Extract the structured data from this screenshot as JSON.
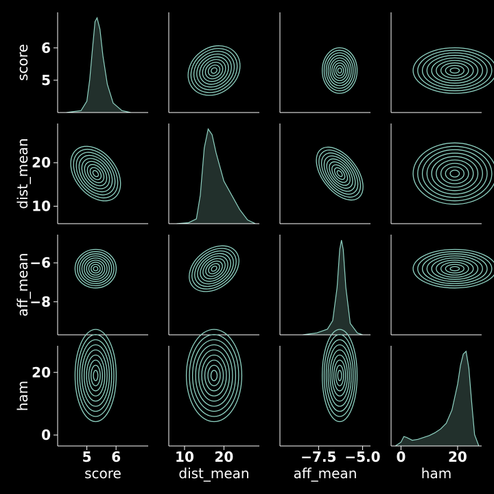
{
  "chart_data": {
    "type": "pairplot",
    "variables": [
      "score",
      "dist_mean",
      "aff_mean",
      "ham"
    ],
    "ranges": {
      "score": [
        4.0,
        7.1
      ],
      "dist_mean": [
        6,
        29
      ],
      "aff_mean": [
        -9.7,
        -4.55
      ],
      "ham": [
        -3.5,
        28.5
      ]
    },
    "ticks": {
      "score": {
        "values": [
          5,
          6
        ],
        "labels": [
          "5",
          "6"
        ]
      },
      "dist_mean": {
        "values": [
          10,
          20
        ],
        "labels": [
          "10",
          "20"
        ]
      },
      "aff_mean": {
        "values": [
          -6,
          -8
        ],
        "labels": [
          "−6",
          "−8"
        ],
        "x_values": [
          -7.5,
          -5.0
        ],
        "x_labels": [
          "−7.5",
          "−5.0"
        ]
      },
      "ham": {
        "values": [
          0,
          20
        ],
        "labels": [
          "0",
          "20"
        ]
      }
    },
    "marginals": {
      "score": {
        "x": [
          4.3,
          4.8,
          5.0,
          5.1,
          5.2,
          5.28,
          5.35,
          5.45,
          5.55,
          5.7,
          5.9,
          6.2,
          6.5
        ],
        "density": [
          0.0,
          0.02,
          0.12,
          0.35,
          0.7,
          0.96,
          1.0,
          0.88,
          0.6,
          0.3,
          0.1,
          0.02,
          0.0
        ]
      },
      "dist_mean": {
        "x": [
          8,
          11,
          13,
          14,
          15,
          16,
          17,
          18,
          19,
          20,
          22,
          24,
          26,
          28
        ],
        "density": [
          0.0,
          0.01,
          0.05,
          0.3,
          0.8,
          1.0,
          0.94,
          0.75,
          0.6,
          0.45,
          0.3,
          0.15,
          0.04,
          0.0
        ]
      },
      "aff_mean": {
        "x": [
          -8.4,
          -7.6,
          -7.0,
          -6.7,
          -6.45,
          -6.3,
          -6.2,
          -6.1,
          -5.95,
          -5.7,
          -5.3,
          -5.0
        ],
        "density": [
          0.0,
          0.02,
          0.06,
          0.15,
          0.5,
          0.9,
          1.0,
          0.9,
          0.5,
          0.12,
          0.02,
          0.0
        ]
      },
      "ham": {
        "x": [
          -2,
          0,
          1,
          2,
          4,
          6,
          8,
          10,
          12,
          14,
          16,
          18,
          20,
          21,
          22,
          23,
          24,
          25,
          26,
          27.5
        ],
        "density": [
          0.0,
          0.04,
          0.1,
          0.09,
          0.06,
          0.07,
          0.09,
          0.11,
          0.14,
          0.18,
          0.24,
          0.38,
          0.65,
          0.85,
          0.97,
          1.0,
          0.82,
          0.45,
          0.12,
          0.0
        ]
      }
    },
    "contour_levels": 9,
    "color": "#8fd3c3",
    "fill_color": "#22302c",
    "background": "#000000",
    "axis_color": "#ffffff"
  }
}
